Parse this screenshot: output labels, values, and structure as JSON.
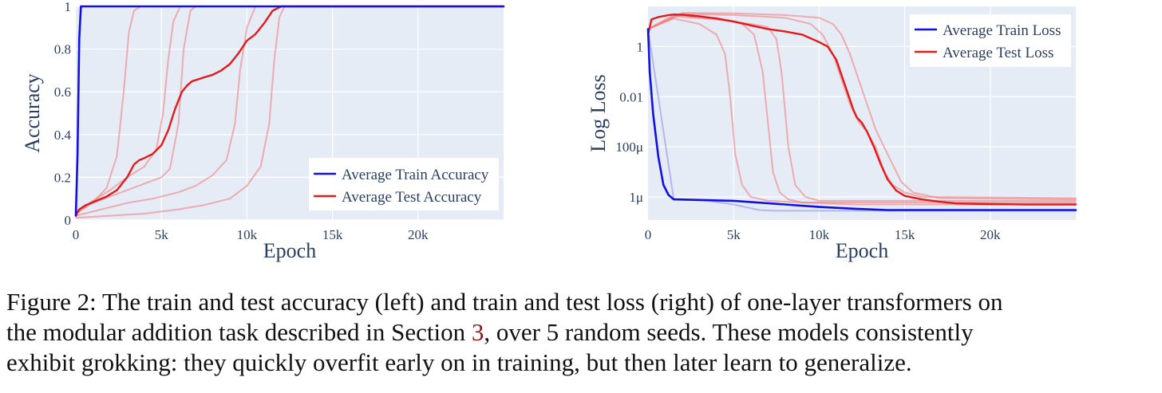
{
  "chart_data": [
    {
      "type": "line",
      "xlabel": "Epoch",
      "ylabel": "Accuracy",
      "xlim": [
        0,
        25000
      ],
      "ylim": [
        0,
        1
      ],
      "x_ticks": [
        0,
        5000,
        10000,
        15000,
        20000
      ],
      "x_tick_labels": [
        "0",
        "5k",
        "10k",
        "15k",
        "20k"
      ],
      "y_ticks": [
        0,
        0.2,
        0.4,
        0.6,
        0.8,
        1
      ],
      "y_tick_labels": [
        "0",
        "0.2",
        "0.4",
        "0.6",
        "0.8",
        "1"
      ],
      "grid": true,
      "legend_position": "bottom-right",
      "series": [
        {
          "name": "Average Train Accuracy",
          "color": "#1010e0",
          "width": 2.6,
          "x": [
            0,
            100,
            200,
            300,
            500,
            25000
          ],
          "y": [
            0.02,
            0.3,
            0.85,
            1,
            1,
            1
          ]
        },
        {
          "name": "Average Test Accuracy",
          "color": "#e31a1c",
          "width": 2.4,
          "x": [
            0,
            200,
            600,
            1200,
            1800,
            2400,
            3000,
            3400,
            3700,
            4000,
            4500,
            5000,
            5400,
            5800,
            6200,
            6500,
            6800,
            7200,
            7600,
            8000,
            8500,
            9000,
            9500,
            10000,
            10500,
            11000,
            11500,
            12000,
            12500,
            25000
          ],
          "y": [
            0.02,
            0.05,
            0.07,
            0.09,
            0.11,
            0.14,
            0.2,
            0.26,
            0.28,
            0.29,
            0.31,
            0.35,
            0.42,
            0.52,
            0.6,
            0.63,
            0.65,
            0.66,
            0.67,
            0.68,
            0.7,
            0.73,
            0.78,
            0.84,
            0.87,
            0.92,
            0.98,
            1,
            1,
            1
          ]
        },
        {
          "name": "",
          "color": "#f08080",
          "width": 2,
          "opacity": 0.6,
          "x": [
            0,
            600,
            1200,
            1800,
            2400,
            2800,
            3100,
            3400,
            3800,
            4200,
            25000
          ],
          "y": [
            0.03,
            0.06,
            0.1,
            0.15,
            0.3,
            0.6,
            0.88,
            0.98,
            1,
            1,
            1
          ]
        },
        {
          "name": "",
          "color": "#f08080",
          "width": 2,
          "opacity": 0.6,
          "x": [
            0,
            1000,
            2000,
            3000,
            4000,
            4700,
            5100,
            5400,
            5700,
            6100,
            6500,
            25000
          ],
          "y": [
            0.03,
            0.09,
            0.14,
            0.2,
            0.25,
            0.33,
            0.5,
            0.75,
            0.93,
            1,
            1,
            1
          ]
        },
        {
          "name": "",
          "color": "#f08080",
          "width": 2,
          "opacity": 0.6,
          "x": [
            0,
            1000,
            2000,
            3000,
            4000,
            5000,
            5500,
            6000,
            6300,
            6700,
            7000,
            25000
          ],
          "y": [
            0.04,
            0.08,
            0.11,
            0.14,
            0.17,
            0.2,
            0.24,
            0.45,
            0.8,
            0.98,
            1,
            1
          ]
        },
        {
          "name": "",
          "color": "#f08080",
          "width": 2,
          "opacity": 0.6,
          "x": [
            0,
            1500,
            3000,
            4500,
            6000,
            7000,
            8000,
            8800,
            9300,
            9600,
            10000,
            10500,
            11000,
            25000
          ],
          "y": [
            0.02,
            0.05,
            0.08,
            0.1,
            0.13,
            0.16,
            0.21,
            0.28,
            0.45,
            0.7,
            0.9,
            1,
            1,
            1
          ]
        },
        {
          "name": "",
          "color": "#f08080",
          "width": 2,
          "opacity": 0.6,
          "x": [
            0,
            2000,
            4000,
            6000,
            7500,
            9000,
            10000,
            10800,
            11300,
            11600,
            11900,
            12200,
            12500,
            25000
          ],
          "y": [
            0.01,
            0.02,
            0.03,
            0.05,
            0.07,
            0.1,
            0.16,
            0.25,
            0.45,
            0.75,
            0.95,
            1,
            1,
            1
          ]
        }
      ]
    },
    {
      "type": "line",
      "xlabel": "Epoch",
      "ylabel": "Log Loss",
      "y_scale": "log",
      "xlim": [
        0,
        25000
      ],
      "ylim": [
        1.2e-07,
        40
      ],
      "x_ticks": [
        0,
        5000,
        10000,
        15000,
        20000
      ],
      "x_tick_labels": [
        "0",
        "5k",
        "10k",
        "15k",
        "20k"
      ],
      "y_ticks": [
        1,
        0.01,
        0.0001,
        1e-06
      ],
      "y_tick_labels": [
        "1",
        "0.01",
        "100μ",
        "1μ"
      ],
      "grid": true,
      "legend_position": "top-right",
      "series": [
        {
          "name": "Average Train Loss",
          "color": "#1010e0",
          "width": 2.6,
          "x": [
            0,
            100,
            300,
            600,
            900,
            1200,
            1500,
            5000,
            8000,
            10000,
            12000,
            14000,
            25000
          ],
          "y": [
            5,
            0.1,
            0.002,
            4e-05,
            3e-06,
            1.2e-06,
            8e-07,
            7e-07,
            5e-07,
            4e-07,
            3.4e-07,
            3e-07,
            3e-07
          ]
        },
        {
          "name": "Average Test Loss",
          "color": "#e31a1c",
          "width": 2.4,
          "x": [
            0,
            200,
            600,
            1200,
            1500,
            2000,
            3000,
            4000,
            5000,
            6000,
            7000,
            8000,
            9000,
            10000,
            10500,
            11000,
            11500,
            12000,
            12200,
            12500,
            12800,
            13200,
            13600,
            14000,
            14500,
            15000,
            16000,
            17000,
            18000,
            20000,
            22000,
            25000
          ],
          "y": [
            3,
            12,
            15,
            18,
            19,
            18.5,
            16,
            13,
            10,
            7,
            5,
            4,
            3,
            1.5,
            1,
            0.3,
            0.03,
            0.003,
            0.0015,
            0.0009,
            0.0004,
            0.0001,
            2e-05,
            5e-06,
            1.8e-06,
            1.1e-06,
            8e-07,
            6.5e-07,
            5.5e-07,
            5.2e-07,
            5e-07,
            5e-07
          ]
        },
        {
          "name": "",
          "color": "#f08080",
          "width": 2,
          "opacity": 0.6,
          "x": [
            0,
            1500,
            3000,
            4000,
            4500,
            4800,
            5100,
            5500,
            6000,
            7000,
            9000,
            12000,
            25000
          ],
          "y": [
            5,
            13,
            8,
            3,
            0.5,
            0.01,
            5e-05,
            3e-06,
            1e-06,
            7e-07,
            6e-07,
            5e-07,
            5e-07
          ]
        },
        {
          "name": "",
          "color": "#f08080",
          "width": 2,
          "opacity": 0.6,
          "x": [
            0,
            1500,
            4000,
            5500,
            6200,
            6700,
            7000,
            7300,
            7700,
            8200,
            9000,
            25000
          ],
          "y": [
            5,
            18,
            14,
            8,
            3,
            0.1,
            0.001,
            1e-05,
            1.5e-06,
            8e-07,
            6e-07,
            6e-07
          ]
        },
        {
          "name": "",
          "color": "#f08080",
          "width": 2,
          "opacity": 0.6,
          "x": [
            0,
            1500,
            4000,
            6000,
            7000,
            7500,
            7800,
            8200,
            8600,
            9200,
            10000,
            25000
          ],
          "y": [
            5,
            16,
            12,
            8,
            6,
            2,
            0.1,
            0.0001,
            3e-06,
            1e-06,
            7e-07,
            7e-07
          ]
        },
        {
          "name": "",
          "color": "#f08080",
          "width": 2,
          "opacity": 0.6,
          "x": [
            0,
            2000,
            5000,
            8000,
            9500,
            10200,
            10800,
            11300,
            11800,
            12300,
            12800,
            13300,
            13800,
            14300,
            15000,
            16000,
            25000
          ],
          "y": [
            5,
            20,
            18,
            14,
            8,
            3,
            0.5,
            0.05,
            0.005,
            0.001,
            0.0004,
            0.0001,
            1e-05,
            3e-06,
            1.5e-06,
            1e-06,
            9e-07
          ]
        },
        {
          "name": "",
          "color": "#f08080",
          "width": 2,
          "opacity": 0.6,
          "x": [
            0,
            2000,
            5000,
            8000,
            10000,
            10800,
            11300,
            11800,
            12300,
            12800,
            13300,
            14000,
            14800,
            15500,
            17000,
            25000
          ],
          "y": [
            5,
            22,
            21,
            18,
            14,
            8,
            3,
            0.5,
            0.05,
            0.005,
            0.0005,
            5e-05,
            4e-06,
            1.5e-06,
            9e-07,
            8e-07
          ]
        },
        {
          "name": "",
          "color": "#9a9ae8",
          "width": 2,
          "opacity": 0.65,
          "x": [
            0,
            1500,
            3500,
            5000,
            6500,
            7500,
            10000,
            25000
          ],
          "y": [
            5,
            8e-07,
            7e-07,
            5e-07,
            3e-07,
            2.8e-07,
            2.8e-07,
            2.8e-07
          ]
        }
      ]
    }
  ],
  "caption": {
    "line1": "Figure 2: The train and test accuracy (left) and train and test loss (right) of one-layer transformers on",
    "line2_before": "the modular addition task described in Section ",
    "line2_ref": "3",
    "line2_after": ", over 5 random seeds.  These models consistently",
    "line3": "exhibit grokking: they quickly overfit early on in training, but then later learn to generalize."
  }
}
